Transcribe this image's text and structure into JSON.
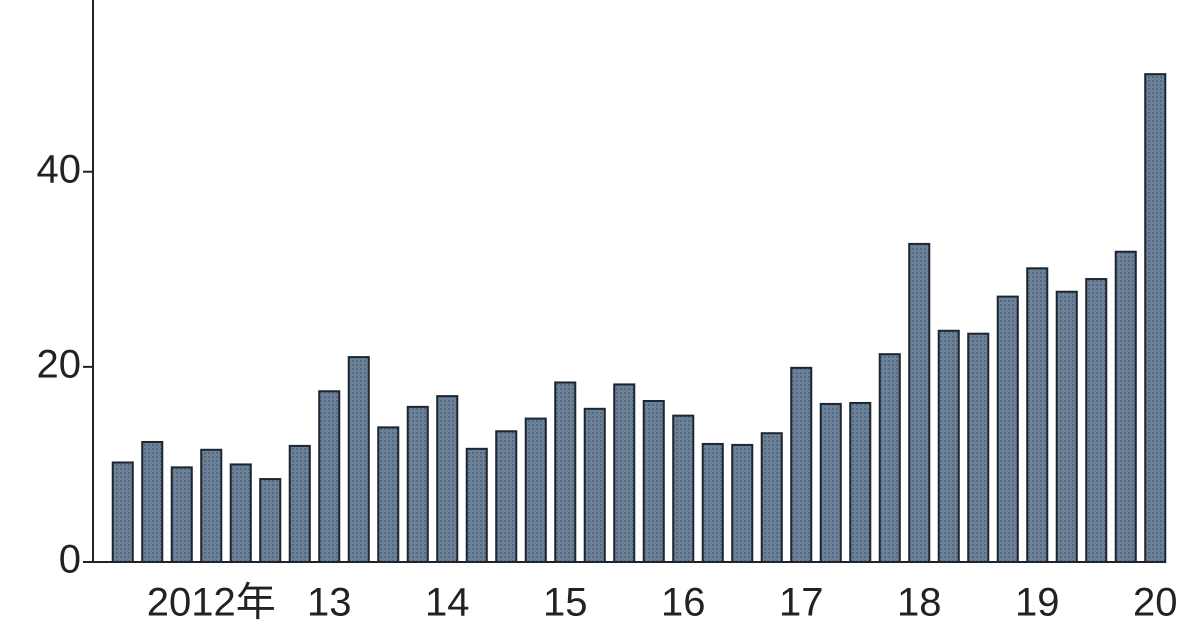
{
  "chart_data": {
    "type": "bar",
    "categories": [
      null,
      null,
      null,
      "2012年",
      null,
      null,
      null,
      "13",
      null,
      null,
      null,
      "14",
      null,
      null,
      null,
      "15",
      null,
      null,
      null,
      "16",
      null,
      null,
      null,
      "17",
      null,
      null,
      null,
      "18",
      null,
      null,
      null,
      "19",
      null,
      null,
      null,
      "20"
    ],
    "values": [
      10.2,
      12.3,
      9.7,
      11.5,
      10.0,
      8.5,
      11.9,
      17.5,
      21.0,
      13.8,
      15.9,
      17.0,
      11.6,
      13.4,
      14.7,
      18.4,
      15.7,
      18.2,
      16.5,
      15.0,
      12.1,
      12.0,
      13.2,
      19.9,
      16.2,
      16.3,
      21.3,
      32.6,
      23.7,
      23.4,
      27.2,
      30.1,
      27.7,
      29.0,
      31.8,
      50.0
    ],
    "color": "#6a8197",
    "ylim": [
      0,
      57.6
    ],
    "yticks": [
      0,
      20,
      40
    ]
  }
}
